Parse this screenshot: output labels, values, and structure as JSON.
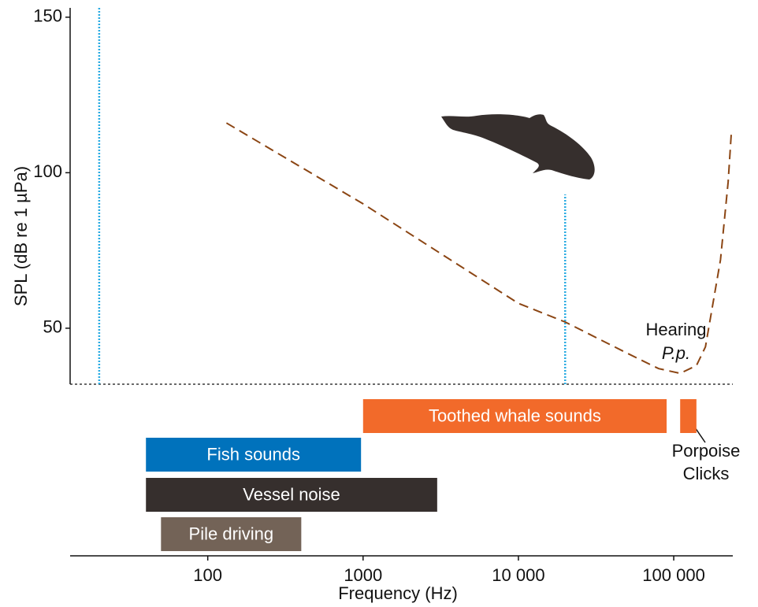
{
  "chart_data": {
    "type": "range-chart",
    "xlabel": "Frequency (Hz)",
    "ylabel": "SPL (dB re 1 µPa)",
    "xscale": "log",
    "xlim": [
      13,
      240000
    ],
    "ylim": [
      32,
      153
    ],
    "xticks": [
      100,
      1000,
      {
        "value": 10000,
        "label": "10 000"
      },
      {
        "value": 100000,
        "label": "100 000"
      }
    ],
    "yticks": [
      50,
      100,
      150
    ],
    "hearing_curve": {
      "color": "#8b4513",
      "x": [
        132,
        1000,
        10000,
        20000,
        50000,
        80000,
        110000,
        140000,
        160000,
        200000,
        224000,
        235000
      ],
      "y": [
        116,
        90,
        58,
        52,
        42,
        37,
        35.5,
        38,
        44,
        72,
        97,
        113
      ]
    },
    "reference_lines": [
      {
        "x": 20,
        "ylim": [
          32,
          153
        ],
        "color": "#29abe2"
      },
      {
        "x": 20000,
        "ylim": [
          32,
          93
        ],
        "color": "#29abe2"
      }
    ],
    "rows": [
      {
        "bars": [
          {
            "label": "Toothed whale sounds",
            "color": "#f26a2a",
            "start": 1000,
            "end": 90000
          },
          {
            "color": "#f26a2a",
            "start": 110000,
            "end": 140000
          }
        ]
      },
      {
        "bars": [
          {
            "label": "Fish sounds",
            "color": "#0072bc",
            "start": 40,
            "end": 970
          }
        ]
      },
      {
        "bars": [
          {
            "label": "Vessel noise",
            "color": "#362f2d",
            "start": 40,
            "end": 3000
          }
        ]
      },
      {
        "bars": [
          {
            "label": "Pile driving",
            "color": "#736357",
            "start": 50,
            "end": 400
          }
        ]
      }
    ],
    "annotations": {
      "hearing": [
        "Hearing",
        "P.p."
      ],
      "porpoise": [
        "Porpoise",
        "Clicks"
      ]
    }
  }
}
